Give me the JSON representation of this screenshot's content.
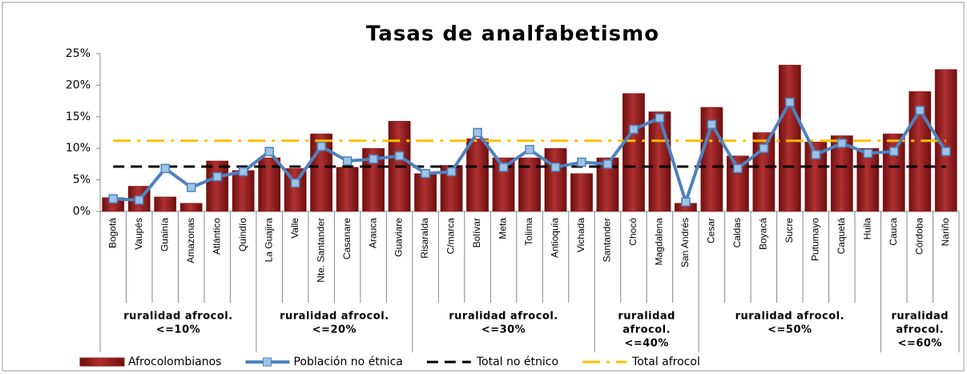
{
  "chart_data": {
    "type": "bar-line",
    "title": "Tasas de analfabetismo",
    "categories": [
      "Bogotá",
      "Vaupés",
      "Guainía",
      "Amazonas",
      "Atlántico",
      "Quindío",
      "La Guajira",
      "Valle",
      "Nte. Santander",
      "Casanare",
      "Arauca",
      "Guaviare",
      "Risaralda",
      "C/marca",
      "Bolívar",
      "Meta",
      "Tolima",
      "Antioquia",
      "Vichada",
      "Santander",
      "Chocó",
      "Magdalena",
      "San Andrés",
      "Cesar",
      "Caldas",
      "Boyacá",
      "Sucre",
      "Putumayo",
      "Caquetá",
      "Huila",
      "Cauca",
      "Córdoba",
      "Nariño"
    ],
    "series": [
      {
        "name": "Afrocolombianos",
        "kind": "bar",
        "color": "#8b1a1a",
        "values": [
          2.2,
          4.0,
          2.3,
          1.3,
          8.0,
          6.5,
          8.5,
          6.8,
          12.3,
          7.0,
          10.0,
          14.3,
          6.0,
          7.3,
          11.5,
          8.5,
          8.5,
          10.0,
          6.0,
          8.5,
          18.7,
          15.8,
          1.3,
          16.5,
          8.8,
          12.5,
          23.2,
          11.0,
          12.0,
          10.0,
          12.3,
          19.0,
          22.5
        ]
      },
      {
        "name": "Población no étnica",
        "kind": "line",
        "color": "#4f81bd",
        "values": [
          2.0,
          1.8,
          6.8,
          3.8,
          5.5,
          6.3,
          9.5,
          4.5,
          10.3,
          8.0,
          8.3,
          8.8,
          6.0,
          6.3,
          12.5,
          7.0,
          9.8,
          7.0,
          7.8,
          7.5,
          13.0,
          14.8,
          1.5,
          13.8,
          6.8,
          10.0,
          17.3,
          9.0,
          10.8,
          9.2,
          9.5,
          16.0,
          9.5
        ]
      }
    ],
    "reference_lines": [
      {
        "name": "Total no étnico",
        "value": 7.1,
        "color": "#000000",
        "dash": "dashed"
      },
      {
        "name": "Total afrocol",
        "value": 11.2,
        "color": "#ffc000",
        "dash": "dashdot"
      }
    ],
    "groups": [
      {
        "lines": [
          "ruralidad afrocol.",
          "<=10%"
        ],
        "span": 6
      },
      {
        "lines": [
          "ruralidad afrocol.",
          "<=20%"
        ],
        "span": 6
      },
      {
        "lines": [
          "ruralidad afrocol.",
          "<=30%"
        ],
        "span": 7
      },
      {
        "lines": [
          "ruralidad",
          "afrocol.",
          "<=40%"
        ],
        "span": 4
      },
      {
        "lines": [
          "ruralidad afrocol.",
          "<=50%"
        ],
        "span": 7
      },
      {
        "lines": [
          "ruralidad",
          "afrocol.",
          "<=60%"
        ],
        "span": 3
      }
    ],
    "ylim": [
      0,
      25
    ],
    "yticks": [
      {
        "value": 0,
        "label": "0%"
      },
      {
        "value": 5,
        "label": "5%"
      },
      {
        "value": 10,
        "label": "10%"
      },
      {
        "value": 15,
        "label": "15%"
      },
      {
        "value": 20,
        "label": "20%"
      },
      {
        "value": 25,
        "label": "25%"
      }
    ],
    "grid": false,
    "legend": "bottom"
  }
}
